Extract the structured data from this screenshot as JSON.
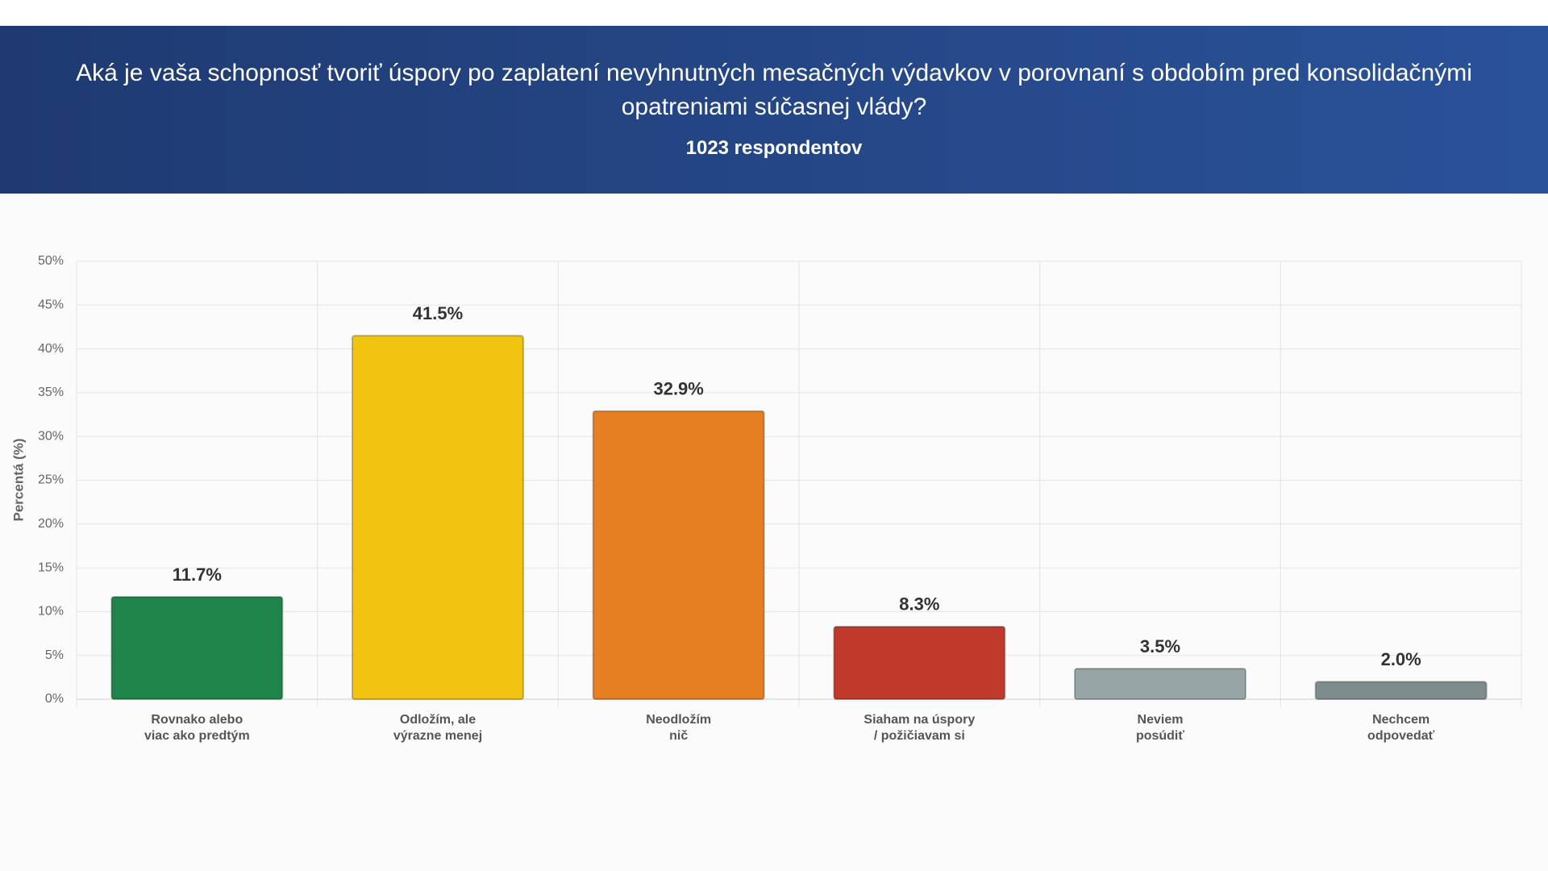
{
  "chart_data": {
    "type": "bar",
    "title": "Aká je vaša schopnosť tvoriť úspory po zaplatení nevyhnutných mesačných výdavkov v porovnaní s obdobím pred konsolidačnými opatreniami súčasnej vlády?",
    "subtitle": "1023 respondentov",
    "y_label": "Percentá (%)",
    "categories": [
      [
        "Rovnako alebo",
        "viac ako predtým"
      ],
      [
        "Odložím, ale",
        "výrazne menej"
      ],
      [
        "Neodložím",
        "nič"
      ],
      [
        "Siaham na úspory",
        "/ požičiavam si"
      ],
      [
        "Neviem",
        "posúdiť"
      ],
      [
        "Nechcem",
        "odpovedať"
      ]
    ],
    "values": [
      11.7,
      41.5,
      32.9,
      8.3,
      3.5,
      2.0
    ],
    "value_labels": [
      "11.7%",
      "41.5%",
      "32.9%",
      "8.3%",
      "3.5%",
      "2.0%"
    ],
    "colors": [
      "#1e8449",
      "#f1c40f",
      "#e67e22",
      "#c0392b",
      "#95a5a6",
      "#7f8c8d"
    ],
    "ylim": [
      0,
      50
    ],
    "yticks": [
      {
        "value": 0,
        "label": "0%"
      },
      {
        "value": 5,
        "label": "5%"
      },
      {
        "value": 10,
        "label": "10%"
      },
      {
        "value": 15,
        "label": "15%"
      },
      {
        "value": 20,
        "label": "20%"
      },
      {
        "value": 25,
        "label": "25%"
      },
      {
        "value": 30,
        "label": "30%"
      },
      {
        "value": 35,
        "label": "35%"
      },
      {
        "value": 40,
        "label": "40%"
      },
      {
        "value": 45,
        "label": "45%"
      },
      {
        "value": 50,
        "label": "50%"
      }
    ],
    "grid": true
  }
}
